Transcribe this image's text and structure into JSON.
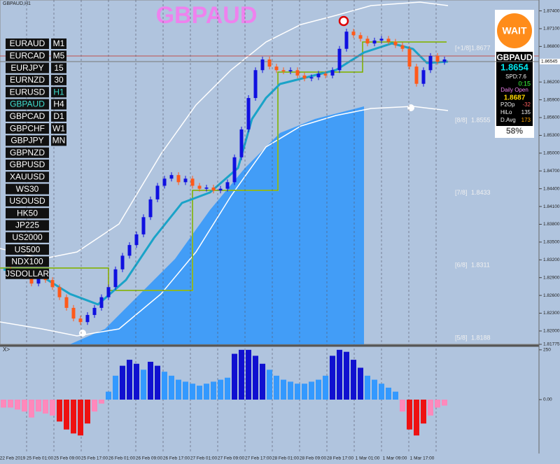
{
  "chart_data": {
    "type": "candlestick",
    "window_title": "GBPAUD,H1",
    "title": "GBPAUD",
    "closes": [
      1.8304,
      1.8298,
      1.8296,
      1.8292,
      1.828,
      1.8288,
      1.8286,
      1.8274,
      1.8257,
      1.8239,
      1.8221,
      1.8215,
      1.8227,
      1.8239,
      1.8257,
      1.8274,
      1.8304,
      1.8327,
      1.8345,
      1.8363,
      1.8392,
      1.8422,
      1.8445,
      1.8457,
      1.8463,
      1.8451,
      1.8457,
      1.8445,
      1.844,
      1.8442,
      1.8437,
      1.844,
      1.8451,
      1.8493,
      1.854,
      1.8593,
      1.864,
      1.8658,
      1.8646,
      1.864,
      1.8638,
      1.864,
      1.8631,
      1.8626,
      1.8628,
      1.8634,
      1.8631,
      1.864,
      1.8676,
      1.8705,
      1.8699,
      1.8693,
      1.8685,
      1.869,
      1.8693,
      1.8688,
      1.8682,
      1.8676,
      1.8646,
      1.8617,
      1.864,
      1.8664,
      1.8654,
      1.8658
    ],
    "up_color": "#1010e0",
    "down_color": "#ff5a1a",
    "ylim": [
      1.81775,
      1.8743
    ],
    "yticks": [
      {
        "value": 1.874,
        "label": "1.87400"
      },
      {
        "value": 1.871,
        "label": "1.87100"
      },
      {
        "value": 1.868,
        "label": "1.86800"
      },
      {
        "value": 1.862,
        "label": "1.86200"
      },
      {
        "value": 1.859,
        "label": "1.85900"
      },
      {
        "value": 1.856,
        "label": "1.85600"
      },
      {
        "value": 1.853,
        "label": "1.85300"
      },
      {
        "value": 1.85,
        "label": "1.85000"
      },
      {
        "value": 1.847,
        "label": "1.84700"
      },
      {
        "value": 1.844,
        "label": "1.84400"
      },
      {
        "value": 1.841,
        "label": "1.84100"
      },
      {
        "value": 1.838,
        "label": "1.83800"
      },
      {
        "value": 1.835,
        "label": "1.83500"
      },
      {
        "value": 1.832,
        "label": "1.83200"
      },
      {
        "value": 1.829,
        "label": "1.82900"
      },
      {
        "value": 1.826,
        "label": "1.82600"
      },
      {
        "value": 1.823,
        "label": "1.82300"
      },
      {
        "value": 1.82,
        "label": "1.82000"
      },
      {
        "value": 1.81775,
        "label": "1.81775"
      }
    ],
    "bid": {
      "value": 1.86545,
      "label": "1.86545"
    },
    "murray_levels": [
      {
        "label": "[+1/8]",
        "value": 1.8677
      },
      {
        "label": "[8/8]",
        "value": 1.8555
      },
      {
        "label": "[7/8]",
        "value": 1.8433
      },
      {
        "label": "[6/8]",
        "value": 1.8311
      },
      {
        "label": "[5/8]",
        "value": 1.8188
      }
    ],
    "x_labels": [
      "22 Feb 2019",
      "25 Feb 01:00",
      "25 Feb 09:00",
      "25 Feb 17:00",
      "26 Feb 01:00",
      "26 Feb 09:00",
      "26 Feb 17:00",
      "27 Feb 01:00",
      "27 Feb 09:00",
      "27 Feb 17:00",
      "28 Feb 01:00",
      "28 Feb 09:00",
      "28 Feb 17:00",
      "1 Mar 01:00",
      "1 Mar 09:00",
      "1 Mar 17:00"
    ],
    "oscillator": {
      "name": "X>",
      "values": [
        -40,
        -40,
        -50,
        -60,
        -90,
        -60,
        -70,
        -80,
        -110,
        -150,
        -170,
        -180,
        -120,
        -60,
        -20,
        40,
        120,
        170,
        200,
        180,
        150,
        190,
        170,
        140,
        120,
        100,
        90,
        80,
        70,
        80,
        90,
        100,
        110,
        230,
        250,
        250,
        220,
        180,
        150,
        120,
        100,
        90,
        80,
        80,
        90,
        100,
        120,
        220,
        250,
        240,
        200,
        160,
        120,
        100,
        80,
        60,
        40,
        -60,
        -150,
        -180,
        -120,
        -80,
        -40,
        -30
      ],
      "ylim": [
        -260,
        260
      ],
      "yticks": [
        250,
        {
          "value": 0,
          "label": "0.00"
        }
      ]
    }
  },
  "symbols": [
    "EURAUD",
    "EURCAD",
    "EURJPY",
    "EURNZD",
    "EURUSD",
    "GBPAUD",
    "GBPCAD",
    "GBPCHF",
    "GBPJPY",
    "GBPNZD",
    "GBPUSD",
    "XAUUSD",
    "WS30",
    "USOUSD",
    "HK50",
    "JP225",
    "US2000",
    "US500",
    "NDX100",
    "JSDOLLAR"
  ],
  "timeframes": [
    "M1",
    "M5",
    "15",
    "30",
    "H1",
    "H4",
    "D1",
    "W1",
    "MN"
  ],
  "panel": {
    "status": "WAIT",
    "symbol": "GBPAUD",
    "price": "1.8654",
    "spread": "SPD:7.6",
    "timer": "0:15",
    "daily_open_label": "Daily Open",
    "daily_open": "1.8687",
    "rows": [
      [
        "P2Op",
        "-32"
      ],
      [
        "HiLo",
        "135"
      ],
      [
        "D.Avg",
        "173"
      ]
    ],
    "percent": "58%"
  }
}
